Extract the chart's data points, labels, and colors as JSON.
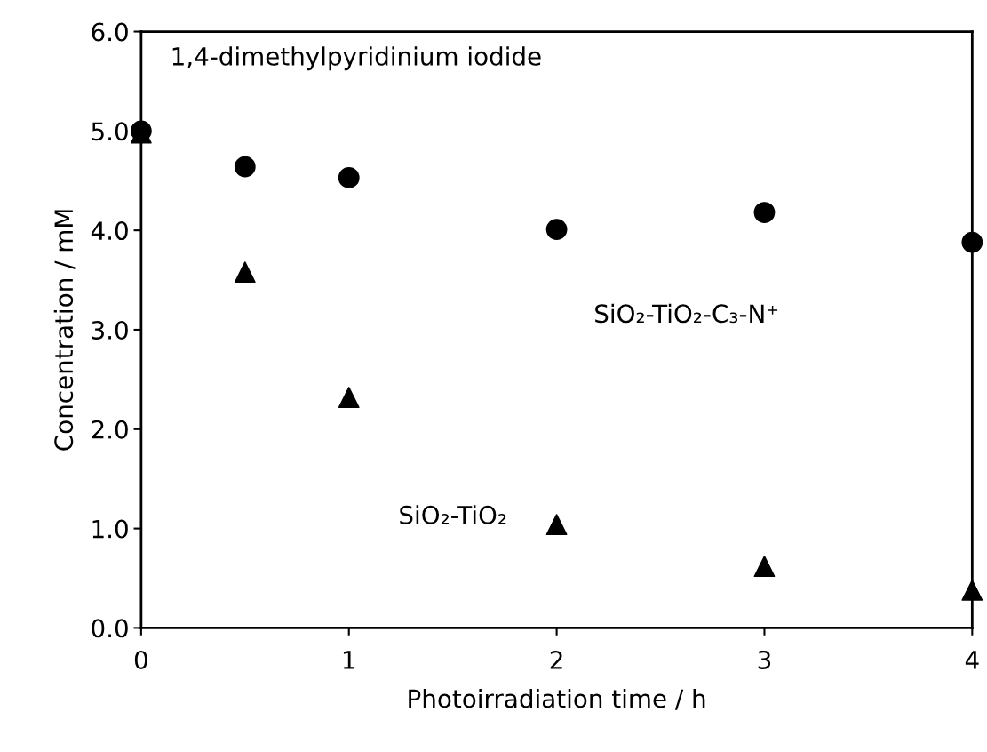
{
  "chart_data": {
    "type": "scatter",
    "xlabel": "Photoirradiation time / h",
    "ylabel": "Concentration / mM",
    "annotations": [
      "1,4-dimethylpyridinium iodide"
    ],
    "series": [
      {
        "name": "SiO₂-TiO₂-C₃-N⁺",
        "color": "#000000",
        "marker": "circle",
        "x": [
          0,
          0.5,
          1,
          2,
          3,
          4
        ],
        "values": [
          5.0,
          4.64,
          4.53,
          4.01,
          4.18,
          3.88
        ]
      },
      {
        "name": "SiO₂-TiO₂",
        "color": "#000000",
        "marker": "triangle",
        "x": [
          0,
          0.5,
          1,
          2,
          3,
          4
        ],
        "values": [
          4.98,
          3.58,
          2.32,
          1.04,
          0.62,
          0.38
        ]
      }
    ],
    "xlim": [
      0,
      4
    ],
    "xticks": [
      0,
      1,
      2,
      3,
      4
    ],
    "ylim": [
      0,
      6
    ],
    "yticks": [
      {
        "value": 0,
        "label": "0.0"
      },
      {
        "value": 1,
        "label": "1.0"
      },
      {
        "value": 2,
        "label": "2.0"
      },
      {
        "value": 3,
        "label": "3.0"
      },
      {
        "value": 4,
        "label": "4.0"
      },
      {
        "value": 5,
        "label": "5.0"
      },
      {
        "value": 6,
        "label": "6.0"
      }
    ],
    "grid": false,
    "legend": false
  }
}
